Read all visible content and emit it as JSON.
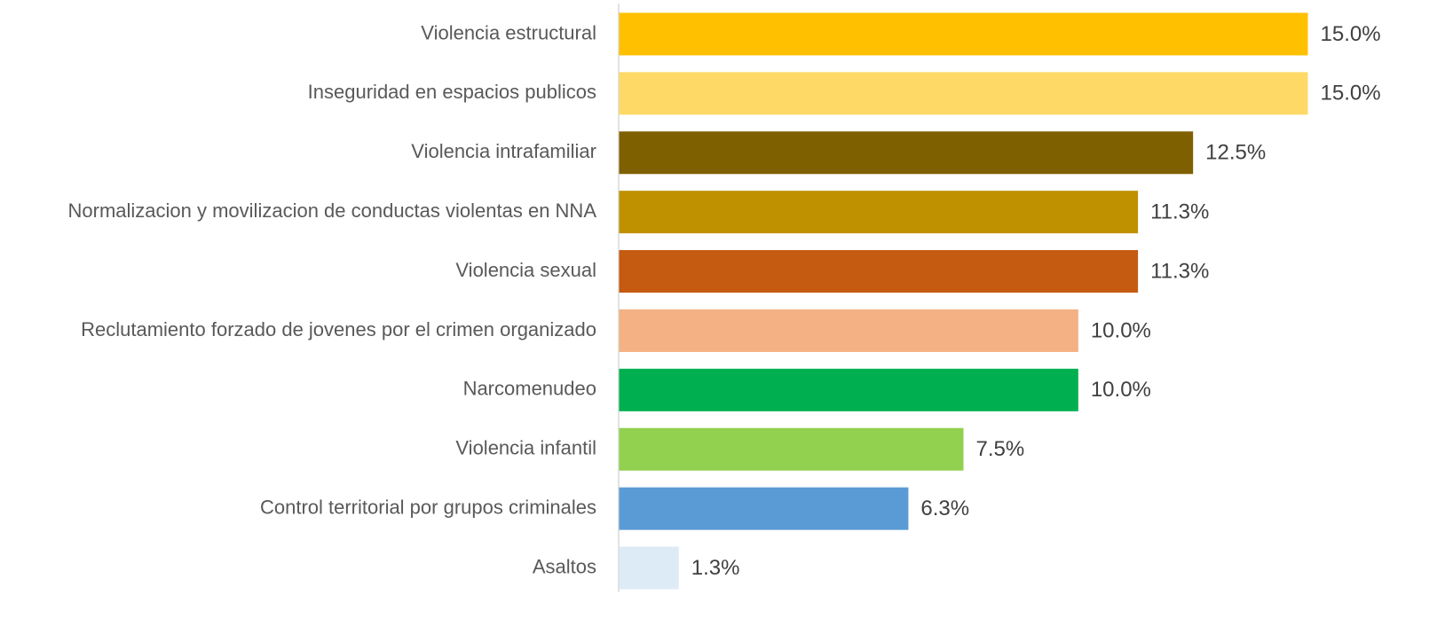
{
  "chart_data": {
    "type": "bar",
    "orientation": "horizontal",
    "categories": [
      "Violencia estructural",
      "Inseguridad en espacios publicos",
      "Violencia intrafamiliar",
      "Normalizacion y movilizacion de conductas violentas en NNA",
      "Violencia sexual",
      "Reclutamiento forzado de jovenes por el crimen organizado",
      "Narcomenudeo",
      "Violencia infantil",
      "Control territorial por grupos criminales",
      "Asaltos"
    ],
    "values": [
      15.0,
      15.0,
      12.5,
      11.3,
      11.3,
      10.0,
      10.0,
      7.5,
      6.3,
      1.3
    ],
    "value_labels": [
      "15.0%",
      "15.0%",
      "12.5%",
      "11.3%",
      "11.3%",
      "10.0%",
      "10.0%",
      "7.5%",
      "6.3%",
      "1.3%"
    ],
    "colors": [
      "#FFC000",
      "#FFD966",
      "#7F6000",
      "#BF9000",
      "#C55A11",
      "#F4B183",
      "#00B050",
      "#92D050",
      "#5B9BD5",
      "#DDEBF7"
    ]
  }
}
